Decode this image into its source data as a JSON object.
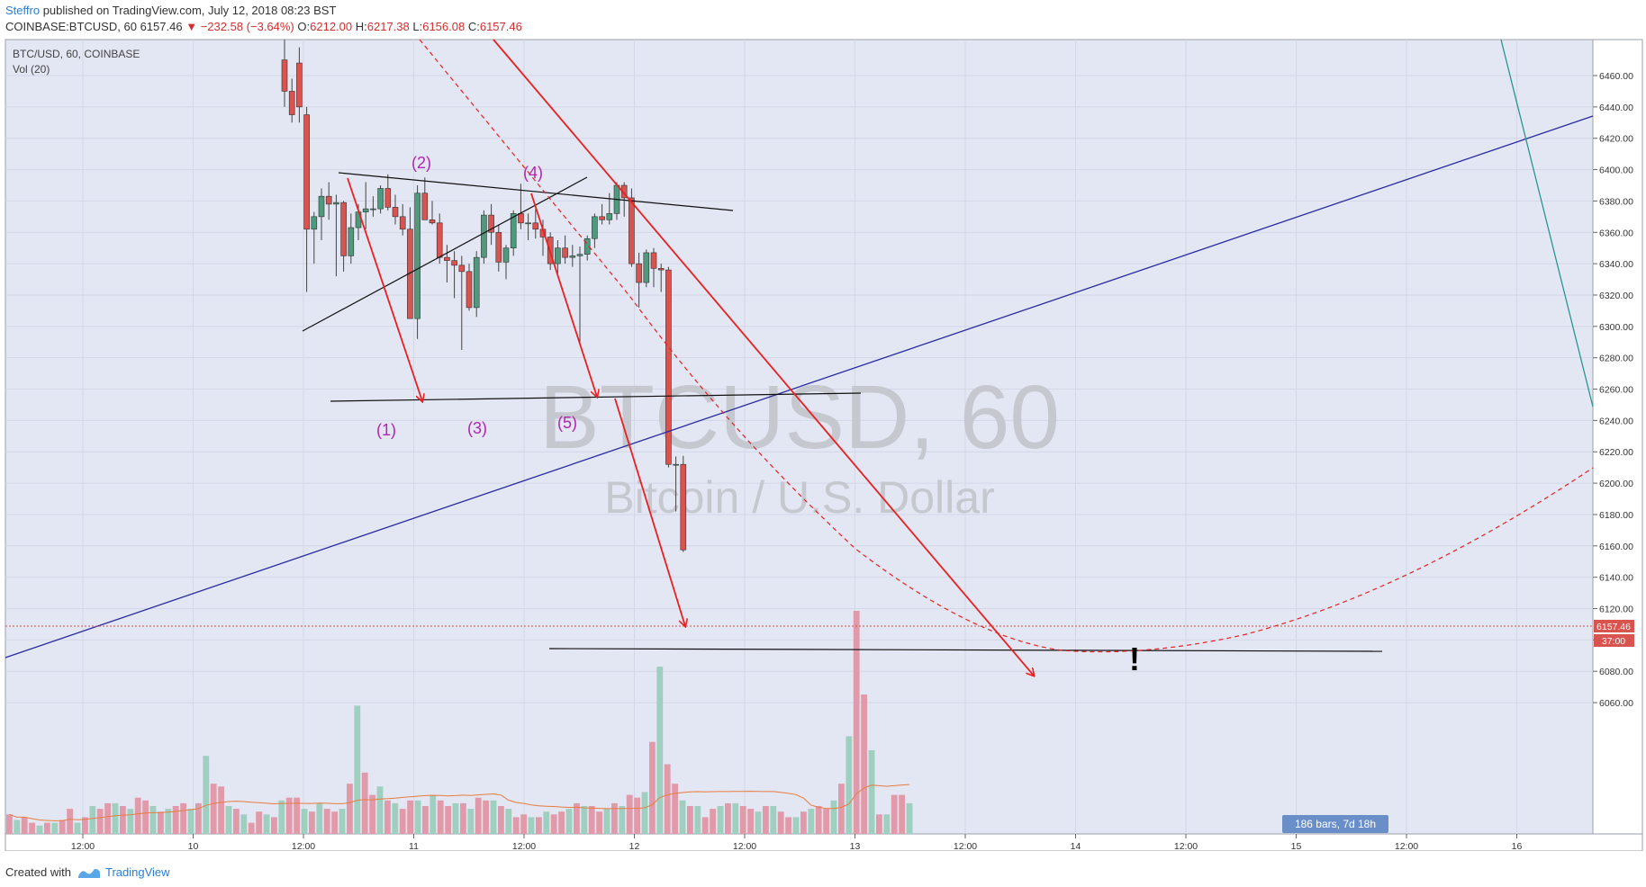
{
  "header": {
    "author": "Steffro",
    "published": "published on TradingView.com, July 12, 2018 08:23 BST",
    "symbol": "COINBASE:BTCUSD, 60",
    "last": "6157.46",
    "change_arrow": "▼",
    "change": "−232.58 (−3.64%)",
    "o_label": "O:",
    "o": "6212.00",
    "h_label": "H:",
    "h": "6217.38",
    "l_label": "L:",
    "l": "6156.08",
    "c_label": "C:",
    "c": "6157.46"
  },
  "legend": {
    "title": "BTC/USD, 60, COINBASE",
    "volume": "Vol (20)"
  },
  "watermark": {
    "symbol": "BTCUSD, 60",
    "name": "Bitcoin / U.S. Dollar"
  },
  "labels": {
    "wave1": "(1)",
    "wave2": "(2)",
    "wave3": "(3)",
    "wave4": "(4)",
    "wave5": "(5)",
    "exclaim": "!"
  },
  "price_axis": {
    "ticks": [
      "6460.00",
      "6440.00",
      "6420.00",
      "6400.00",
      "6380.00",
      "6360.00",
      "6340.00",
      "6320.00",
      "6300.00",
      "6280.00",
      "6260.00",
      "6240.00",
      "6220.00",
      "6200.00",
      "6180.00",
      "6160.00",
      "6140.00",
      "6120.00",
      "6100.00",
      "6080.00",
      "6060.00"
    ],
    "last_price": "6157.46",
    "countdown": "37:00"
  },
  "time_axis": {
    "ticks": [
      "12:00",
      "10",
      "12:00",
      "11",
      "12:00",
      "12",
      "12:00",
      "13",
      "12:00",
      "14",
      "12:00",
      "15",
      "12:00",
      "16"
    ]
  },
  "range_badge": "186 bars, 7d 18h",
  "footer": {
    "created_with": "Created with",
    "brand": "TradingView"
  },
  "colors": {
    "up": "#4f9a7c",
    "down": "#d9534f",
    "vol_up": "#9fcfbf",
    "vol_down": "#e09aaa",
    "pane_bg": "#e3e6f3",
    "blue_trend": "#2a2aa0",
    "teal_line": "#26968f",
    "red_arrow": "#e82020",
    "wave_label": "#b026b0",
    "vol_ma": "#e87d3e"
  },
  "chart_data": {
    "type": "candlestick",
    "symbol": "BTCUSD",
    "timeframe": "60",
    "last_price": 6157.46,
    "price_range": [
      6044,
      6484
    ],
    "candles": [
      [
        6470,
        6484,
        6440,
        6450
      ],
      [
        6450,
        6458,
        6430,
        6435
      ],
      [
        6468,
        6478,
        6430,
        6440
      ],
      [
        6435,
        6440,
        6322,
        6362
      ],
      [
        6362,
        6373,
        6340,
        6370
      ],
      [
        6370,
        6388,
        6355,
        6383
      ],
      [
        6383,
        6392,
        6368,
        6378
      ],
      [
        6378,
        6384,
        6332,
        6379
      ],
      [
        6379,
        6380,
        6335,
        6345
      ],
      [
        6345,
        6372,
        6340,
        6363
      ],
      [
        6363,
        6378,
        6355,
        6373
      ],
      [
        6373,
        6392,
        6362,
        6375
      ],
      [
        6375,
        6383,
        6370,
        6375
      ],
      [
        6375,
        6390,
        6372,
        6388
      ],
      [
        6388,
        6397,
        6374,
        6376
      ],
      [
        6376,
        6384,
        6365,
        6370
      ],
      [
        6370,
        6378,
        6358,
        6362
      ],
      [
        6362,
        6376,
        6305,
        6305
      ],
      [
        6305,
        6390,
        6292,
        6385
      ],
      [
        6385,
        6395,
        6368,
        6368
      ],
      [
        6368,
        6380,
        6365,
        6366
      ],
      [
        6366,
        6372,
        6340,
        6344
      ],
      [
        6344,
        6352,
        6328,
        6342
      ],
      [
        6342,
        6348,
        6318,
        6339
      ],
      [
        6339,
        6345,
        6285,
        6335
      ],
      [
        6335,
        6340,
        6310,
        6312
      ],
      [
        6312,
        6348,
        6306,
        6344
      ],
      [
        6344,
        6374,
        6340,
        6371
      ],
      [
        6371,
        6378,
        6352,
        6360
      ],
      [
        6360,
        6365,
        6335,
        6341
      ],
      [
        6341,
        6352,
        6330,
        6350
      ],
      [
        6350,
        6374,
        6345,
        6372
      ],
      [
        6372,
        6391,
        6362,
        6366
      ],
      [
        6366,
        6372,
        6355,
        6366
      ],
      [
        6366,
        6375,
        6356,
        6362
      ],
      [
        6362,
        6368,
        6345,
        6357
      ],
      [
        6357,
        6360,
        6336,
        6340
      ],
      [
        6340,
        6355,
        6334,
        6350
      ],
      [
        6350,
        6358,
        6340,
        6344
      ],
      [
        6344,
        6352,
        6338,
        6345
      ],
      [
        6345,
        6351,
        6290,
        6346
      ],
      [
        6346,
        6358,
        6342,
        6356
      ],
      [
        6356,
        6372,
        6350,
        6370
      ],
      [
        6370,
        6378,
        6365,
        6368
      ],
      [
        6368,
        6385,
        6365,
        6372
      ],
      [
        6372,
        6392,
        6368,
        6390
      ],
      [
        6390,
        6392,
        6370,
        6382
      ],
      [
        6382,
        6388,
        6338,
        6340
      ],
      [
        6340,
        6347,
        6312,
        6328
      ],
      [
        6328,
        6349,
        6325,
        6347
      ],
      [
        6347,
        6350,
        6325,
        6337
      ],
      [
        6337,
        6340,
        6322,
        6336
      ],
      [
        6336,
        6338,
        6210,
        6212
      ],
      [
        6212,
        6217,
        6182,
        6212
      ],
      [
        6212,
        6217.38,
        6156.08,
        6157.46
      ]
    ],
    "volume": [
      7,
      5,
      6,
      4,
      3,
      4,
      4,
      5,
      9,
      4,
      6,
      10,
      9,
      11,
      11,
      10,
      9,
      13,
      12,
      10,
      8,
      9,
      10,
      11,
      9,
      11,
      28,
      18,
      17,
      10,
      9,
      7,
      4,
      8,
      7,
      6,
      12,
      13,
      13,
      9,
      8,
      11,
      9,
      8,
      9,
      18,
      46,
      22,
      14,
      17,
      12,
      11,
      9,
      12,
      12,
      10,
      14,
      12,
      10,
      11,
      11,
      9,
      13,
      12,
      12,
      10,
      9,
      6,
      7,
      6,
      6,
      8,
      7,
      8,
      9,
      11,
      10,
      10,
      8,
      9,
      11,
      10,
      14,
      13,
      15,
      33,
      60,
      25,
      18,
      12,
      10,
      10,
      6,
      9,
      10,
      11,
      11,
      10,
      9,
      8,
      10,
      10,
      8,
      6,
      6,
      8,
      9,
      10,
      9,
      12,
      18,
      35,
      80,
      50,
      30,
      7,
      7,
      14,
      14,
      11
    ],
    "annotations": {
      "elliott_waves": [
        "(1)",
        "(2)",
        "(3)",
        "(4)",
        "(5)"
      ],
      "support_level": 6283,
      "target_level": 6128,
      "trend_channel": "ascending blue trendline",
      "projection": "dashed red parabolic curve"
    },
    "x_ticks": [
      "12:00",
      "10",
      "12:00",
      "11",
      "12:00",
      "12",
      "12:00",
      "13",
      "12:00",
      "14",
      "12:00",
      "15",
      "12:00",
      "16"
    ],
    "y_ticks": [
      6460,
      6440,
      6420,
      6400,
      6380,
      6360,
      6340,
      6320,
      6300,
      6280,
      6260,
      6240,
      6220,
      6200,
      6180,
      6160,
      6140,
      6120,
      6100,
      6080,
      6060
    ]
  }
}
